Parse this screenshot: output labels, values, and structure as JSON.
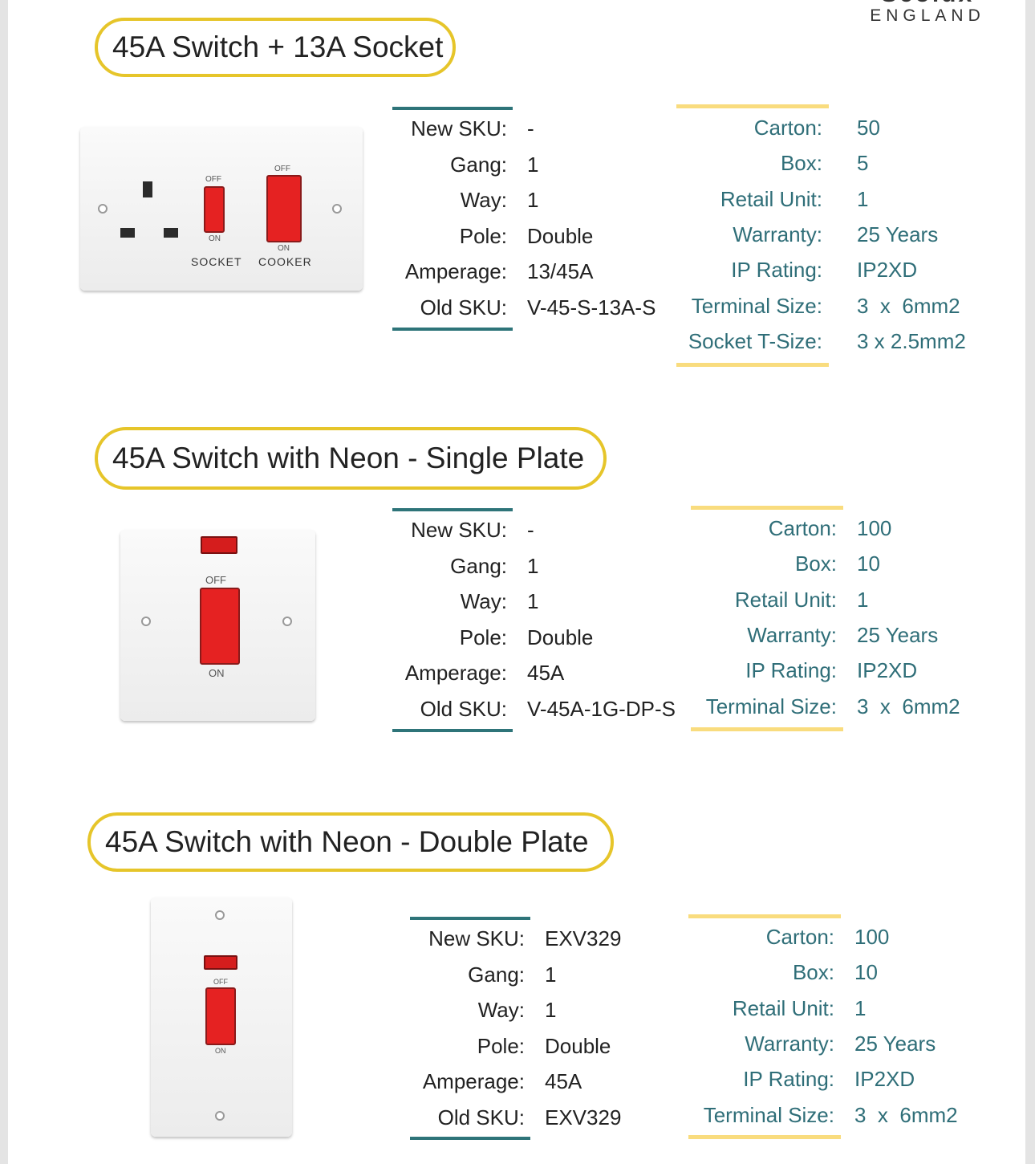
{
  "brand": {
    "name": "Scolux",
    "subtitle": "ENGLAND"
  },
  "colors": {
    "title_border": "#e6c52a",
    "teal_bar": "#2e7479",
    "yellow_bar": "#f9dc7e",
    "teal_text": "#2f6e78",
    "rocker_red": "#e52222"
  },
  "products": [
    {
      "title": "45A Switch + 13A Socket",
      "image": {
        "type": "cooker-switch-with-socket",
        "labels": {
          "socket": "SOCKET",
          "cooker": "COOKER",
          "off": "OFF",
          "on": "ON"
        }
      },
      "specs": [
        {
          "label": "New SKU:",
          "value": "-"
        },
        {
          "label": "Gang:",
          "value": "1"
        },
        {
          "label": "Way:",
          "value": "1"
        },
        {
          "label": "Pole:",
          "value": "Double"
        },
        {
          "label": "Amperage:",
          "value": "13/45A"
        },
        {
          "label": "Old SKU:",
          "value": "V-45-S-13A-S"
        }
      ],
      "packaging": [
        {
          "label": "Carton:",
          "value": "50"
        },
        {
          "label": "Box:",
          "value": "5"
        },
        {
          "label": "Retail Unit:",
          "value": "1"
        },
        {
          "label": "Warranty:",
          "value": "25 Years"
        },
        {
          "label": "IP Rating:",
          "value": "IP2XD"
        },
        {
          "label": "Terminal Size:",
          "value": "3  x  6mm2"
        },
        {
          "label": "Socket T-Size:",
          "value": "3 x 2.5mm2"
        }
      ]
    },
    {
      "title": "45A Switch with Neon - Single Plate",
      "image": {
        "type": "cooker-switch-neon-single",
        "labels": {
          "off": "OFF",
          "on": "ON"
        }
      },
      "specs": [
        {
          "label": "New SKU:",
          "value": "-"
        },
        {
          "label": "Gang:",
          "value": "1"
        },
        {
          "label": "Way:",
          "value": "1"
        },
        {
          "label": "Pole:",
          "value": "Double"
        },
        {
          "label": "Amperage:",
          "value": "45A"
        },
        {
          "label": "Old SKU:",
          "value": "V-45A-1G-DP-S"
        }
      ],
      "packaging": [
        {
          "label": "Carton:",
          "value": "100"
        },
        {
          "label": "Box:",
          "value": "10"
        },
        {
          "label": "Retail Unit:",
          "value": "1"
        },
        {
          "label": "Warranty:",
          "value": "25 Years"
        },
        {
          "label": "IP Rating:",
          "value": "IP2XD"
        },
        {
          "label": "Terminal Size:",
          "value": "3  x  6mm2"
        }
      ]
    },
    {
      "title": "45A Switch with Neon - Double Plate",
      "image": {
        "type": "cooker-switch-neon-double",
        "labels": {
          "off": "OFF",
          "on": "ON"
        }
      },
      "specs": [
        {
          "label": "New SKU:",
          "value": "EXV329"
        },
        {
          "label": "Gang:",
          "value": "1"
        },
        {
          "label": "Way:",
          "value": "1"
        },
        {
          "label": "Pole:",
          "value": "Double"
        },
        {
          "label": "Amperage:",
          "value": "45A"
        },
        {
          "label": "Old SKU:",
          "value": "EXV329"
        }
      ],
      "packaging": [
        {
          "label": "Carton:",
          "value": "100"
        },
        {
          "label": "Box:",
          "value": "10"
        },
        {
          "label": "Retail Unit:",
          "value": "1"
        },
        {
          "label": "Warranty:",
          "value": "25 Years"
        },
        {
          "label": "IP Rating:",
          "value": "IP2XD"
        },
        {
          "label": "Terminal Size:",
          "value": "3  x  6mm2"
        }
      ]
    }
  ]
}
